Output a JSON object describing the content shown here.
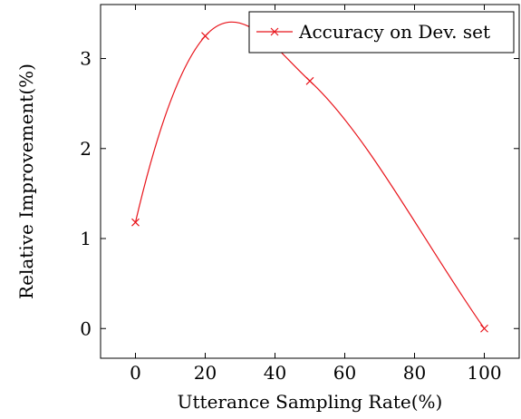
{
  "chart_data": {
    "type": "line",
    "xlabel": "Utterance Sampling Rate(%)",
    "ylabel": "Relative Improvement(%)",
    "xlim": [
      -10,
      110
    ],
    "ylim": [
      -0.33,
      3.6
    ],
    "x_ticks": [
      0,
      20,
      40,
      60,
      80,
      100
    ],
    "y_ticks": [
      0,
      1,
      2,
      3
    ],
    "legend_position": "top-right",
    "grid": false,
    "smooth": true,
    "series": [
      {
        "name": "Accuracy on Dev. set",
        "color": "#e8141b",
        "marker": "x",
        "x": [
          0,
          20,
          50,
          100
        ],
        "y": [
          1.18,
          3.25,
          2.75,
          0.0
        ]
      }
    ]
  }
}
